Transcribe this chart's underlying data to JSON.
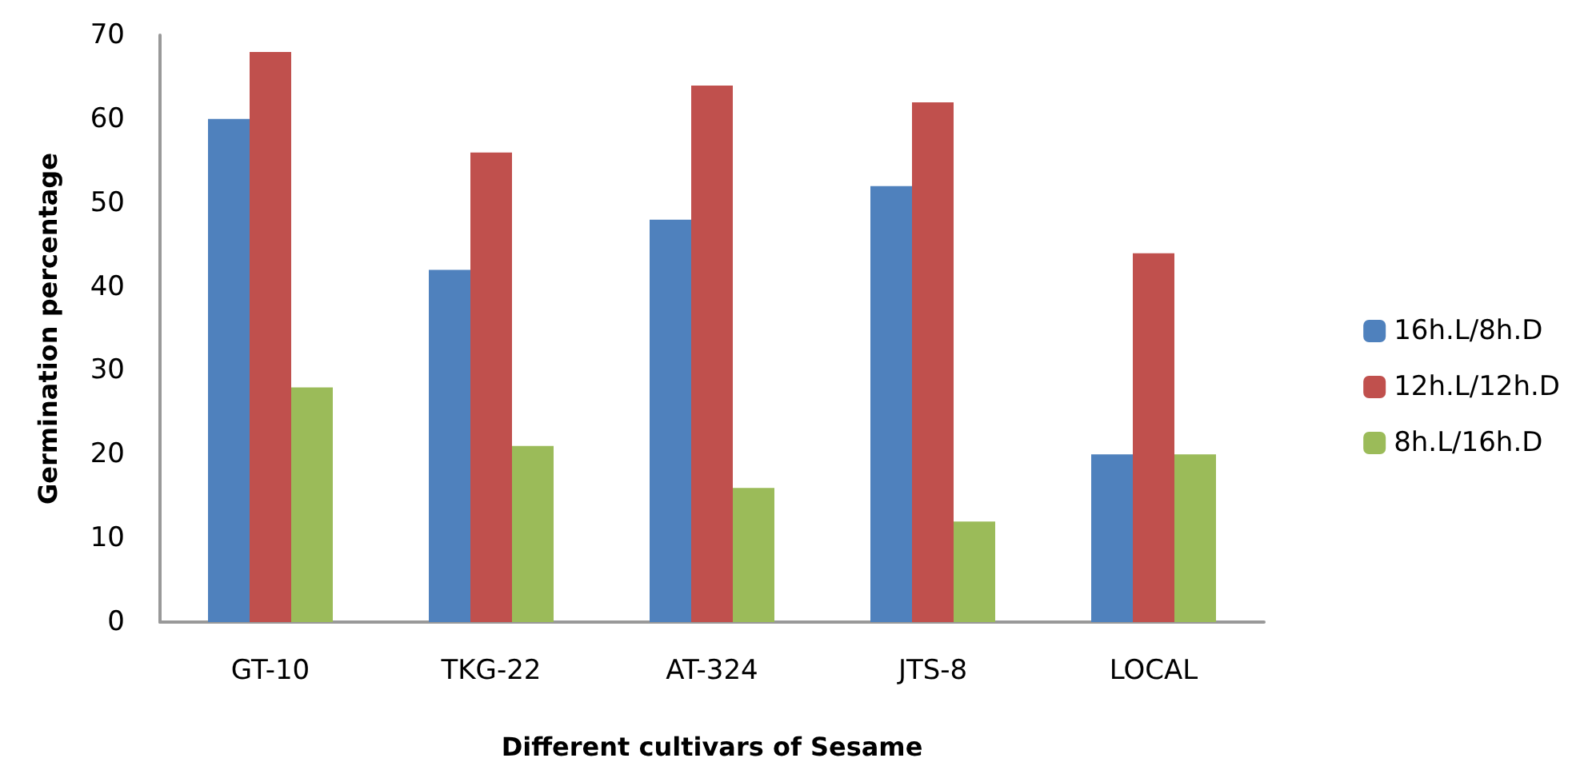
{
  "chart_data": {
    "type": "bar",
    "xlabel": "Different cultivars of Sesame",
    "ylabel": "Germination percentage",
    "categories": [
      "GT-10",
      "TKG-22",
      "AT-324",
      "JTS-8",
      "LOCAL"
    ],
    "series": [
      {
        "name": "16h.L/8h.D",
        "color": "#4f81bd",
        "values": [
          60,
          42,
          48,
          52,
          20
        ]
      },
      {
        "name": "12h.L/12h.D",
        "color": "#c0504d",
        "values": [
          68,
          56,
          64,
          62,
          44
        ]
      },
      {
        "name": "8h.L/16h.D",
        "color": "#9bbb59",
        "values": [
          28,
          21,
          16,
          12,
          20
        ]
      }
    ],
    "ylim": [
      0,
      70
    ],
    "yticks": [
      0,
      10,
      20,
      30,
      40,
      50,
      60,
      70
    ],
    "grid": false,
    "legend": "right"
  }
}
